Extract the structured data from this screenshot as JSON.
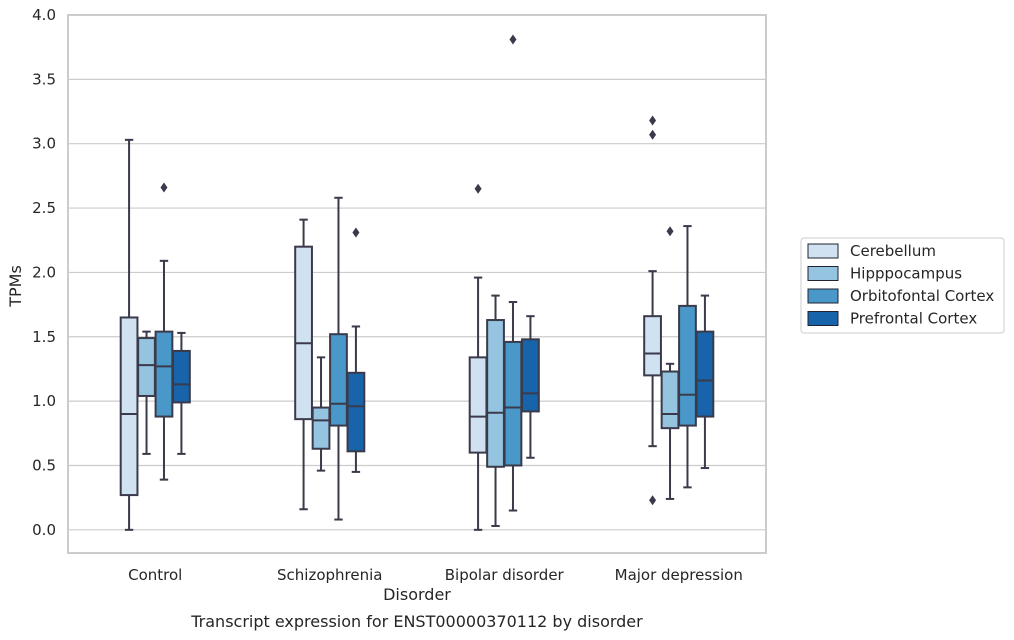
{
  "chart_data": {
    "type": "boxplot",
    "caption": "Transcript expression for ENST00000370112 by disorder",
    "xlabel": "Disorder",
    "ylabel": "TPMs",
    "ylim": [
      -0.18,
      4.0
    ],
    "yticks": [
      "0.0",
      "0.5",
      "1.0",
      "1.5",
      "2.0",
      "2.5",
      "3.0",
      "3.5",
      "4.0"
    ],
    "grid": "horizontal",
    "legend_position": "right",
    "categories": [
      "Control",
      "Schizophrenia",
      "Bipolar disorder",
      "Major depression"
    ],
    "series": [
      {
        "name": "Cerebellum",
        "color": "#d0e1f2",
        "boxes": [
          {
            "whislo": 0.0,
            "q1": 0.27,
            "med": 0.9,
            "q3": 1.65,
            "whishi": 3.03,
            "fliers": []
          },
          {
            "whislo": 0.16,
            "q1": 0.86,
            "med": 1.45,
            "q3": 2.2,
            "whishi": 2.41,
            "fliers": []
          },
          {
            "whislo": 0.0,
            "q1": 0.6,
            "med": 0.88,
            "q3": 1.34,
            "whishi": 1.96,
            "fliers": [
              2.65
            ]
          },
          {
            "whislo": 0.65,
            "q1": 1.2,
            "med": 1.37,
            "q3": 1.66,
            "whishi": 2.01,
            "fliers": [
              0.23,
              3.07,
              3.18
            ]
          }
        ]
      },
      {
        "name": "Hipppocampus",
        "color": "#94c4df",
        "boxes": [
          {
            "whislo": 0.59,
            "q1": 1.04,
            "med": 1.28,
            "q3": 1.49,
            "whishi": 1.54,
            "fliers": []
          },
          {
            "whislo": 0.46,
            "q1": 0.63,
            "med": 0.85,
            "q3": 0.95,
            "whishi": 1.34,
            "fliers": []
          },
          {
            "whislo": 0.03,
            "q1": 0.49,
            "med": 0.91,
            "q3": 1.63,
            "whishi": 1.82,
            "fliers": []
          },
          {
            "whislo": 0.24,
            "q1": 0.79,
            "med": 0.9,
            "q3": 1.23,
            "whishi": 1.29,
            "fliers": [
              2.32
            ]
          }
        ]
      },
      {
        "name": "Orbitofontal Cortex",
        "color": "#4a98c9",
        "boxes": [
          {
            "whislo": 0.39,
            "q1": 0.88,
            "med": 1.27,
            "q3": 1.54,
            "whishi": 2.09,
            "fliers": [
              2.66
            ]
          },
          {
            "whislo": 0.08,
            "q1": 0.81,
            "med": 0.98,
            "q3": 1.52,
            "whishi": 2.58,
            "fliers": []
          },
          {
            "whislo": 0.15,
            "q1": 0.5,
            "med": 0.95,
            "q3": 1.46,
            "whishi": 1.77,
            "fliers": [
              3.81
            ]
          },
          {
            "whislo": 0.33,
            "q1": 0.81,
            "med": 1.05,
            "q3": 1.74,
            "whishi": 2.36,
            "fliers": []
          }
        ]
      },
      {
        "name": "Prefrontal Cortex",
        "color": "#1764ab",
        "boxes": [
          {
            "whislo": 0.59,
            "q1": 0.99,
            "med": 1.13,
            "q3": 1.39,
            "whishi": 1.53,
            "fliers": []
          },
          {
            "whislo": 0.45,
            "q1": 0.61,
            "med": 0.96,
            "q3": 1.22,
            "whishi": 1.58,
            "fliers": [
              2.31
            ]
          },
          {
            "whislo": 0.56,
            "q1": 0.92,
            "med": 1.06,
            "q3": 1.48,
            "whishi": 1.66,
            "fliers": []
          },
          {
            "whislo": 0.48,
            "q1": 0.88,
            "med": 1.16,
            "q3": 1.54,
            "whishi": 1.82,
            "fliers": []
          }
        ]
      }
    ]
  }
}
